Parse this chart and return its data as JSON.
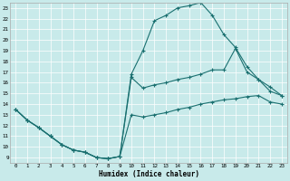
{
  "xlabel": "Humidex (Indice chaleur)",
  "bg_color": "#c8eaea",
  "line_color": "#1a7070",
  "grid_color": "#ffffff",
  "xlim": [
    -0.5,
    23.5
  ],
  "ylim": [
    8.5,
    23.5
  ],
  "yticks": [
    9,
    10,
    11,
    12,
    13,
    14,
    15,
    16,
    17,
    18,
    19,
    20,
    21,
    22,
    23
  ],
  "xticks": [
    0,
    1,
    2,
    3,
    4,
    5,
    6,
    7,
    8,
    9,
    10,
    11,
    12,
    13,
    14,
    15,
    16,
    17,
    18,
    19,
    20,
    21,
    22,
    23
  ],
  "series": [
    {
      "x": [
        0,
        1,
        2,
        3,
        4,
        5,
        6,
        7,
        8,
        9,
        10,
        11,
        12,
        13,
        14,
        15,
        16,
        17,
        18,
        19,
        20,
        21,
        22,
        23
      ],
      "y": [
        13.5,
        12.5,
        11.8,
        11.0,
        10.2,
        9.7,
        9.5,
        9.0,
        8.9,
        9.1,
        13.0,
        12.8,
        13.0,
        13.2,
        13.5,
        13.7,
        14.0,
        14.2,
        14.4,
        14.5,
        14.7,
        14.8,
        14.2,
        14.0
      ]
    },
    {
      "x": [
        0,
        1,
        2,
        3,
        4,
        5,
        6,
        7,
        8,
        9,
        10,
        11,
        12,
        13,
        14,
        15,
        16,
        17,
        18,
        19,
        20,
        21,
        22,
        23
      ],
      "y": [
        13.5,
        12.5,
        11.8,
        11.0,
        10.2,
        9.7,
        9.5,
        9.0,
        8.9,
        9.1,
        16.5,
        15.5,
        15.8,
        16.0,
        16.3,
        16.5,
        16.8,
        17.2,
        17.2,
        19.2,
        17.0,
        16.3,
        15.6,
        14.8
      ]
    },
    {
      "x": [
        0,
        1,
        2,
        3,
        4,
        5,
        6,
        7,
        8,
        9,
        10,
        11,
        12,
        13,
        14,
        15,
        16,
        17,
        18,
        19,
        20,
        21,
        22,
        23
      ],
      "y": [
        13.5,
        12.5,
        11.8,
        11.0,
        10.2,
        9.7,
        9.5,
        9.0,
        8.9,
        9.1,
        16.8,
        19.0,
        21.8,
        22.3,
        23.0,
        23.2,
        23.5,
        22.3,
        20.5,
        19.3,
        17.5,
        16.3,
        15.2,
        14.8
      ]
    }
  ]
}
